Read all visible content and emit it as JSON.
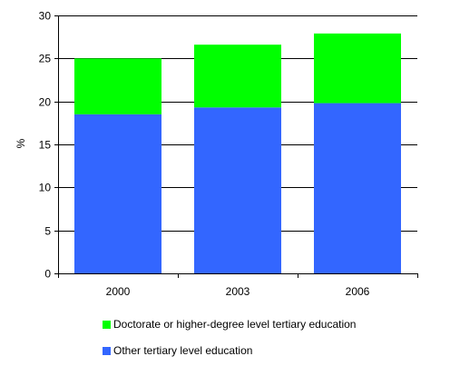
{
  "chart_data": {
    "type": "bar",
    "stacked": true,
    "categories": [
      "2000",
      "2003",
      "2006"
    ],
    "series": [
      {
        "name": "Other tertiary level education",
        "values": [
          18.5,
          19.3,
          19.8
        ],
        "color": "#3366ff"
      },
      {
        "name": "Doctorate or higher-degree level tertiary education",
        "values": [
          6.5,
          7.3,
          8.1
        ],
        "color": "#00ff00"
      }
    ],
    "title": "",
    "xlabel": "",
    "ylabel": "%",
    "ylim": [
      0,
      30
    ],
    "yticks": [
      "0",
      "5",
      "10",
      "15",
      "20",
      "25",
      "30"
    ],
    "grid": true,
    "legend_position": "bottom"
  },
  "legend": {
    "items": [
      {
        "label": "Doctorate or higher-degree level tertiary education",
        "color": "#00ff00"
      },
      {
        "label": "Other tertiary level education",
        "color": "#3366ff"
      }
    ]
  }
}
